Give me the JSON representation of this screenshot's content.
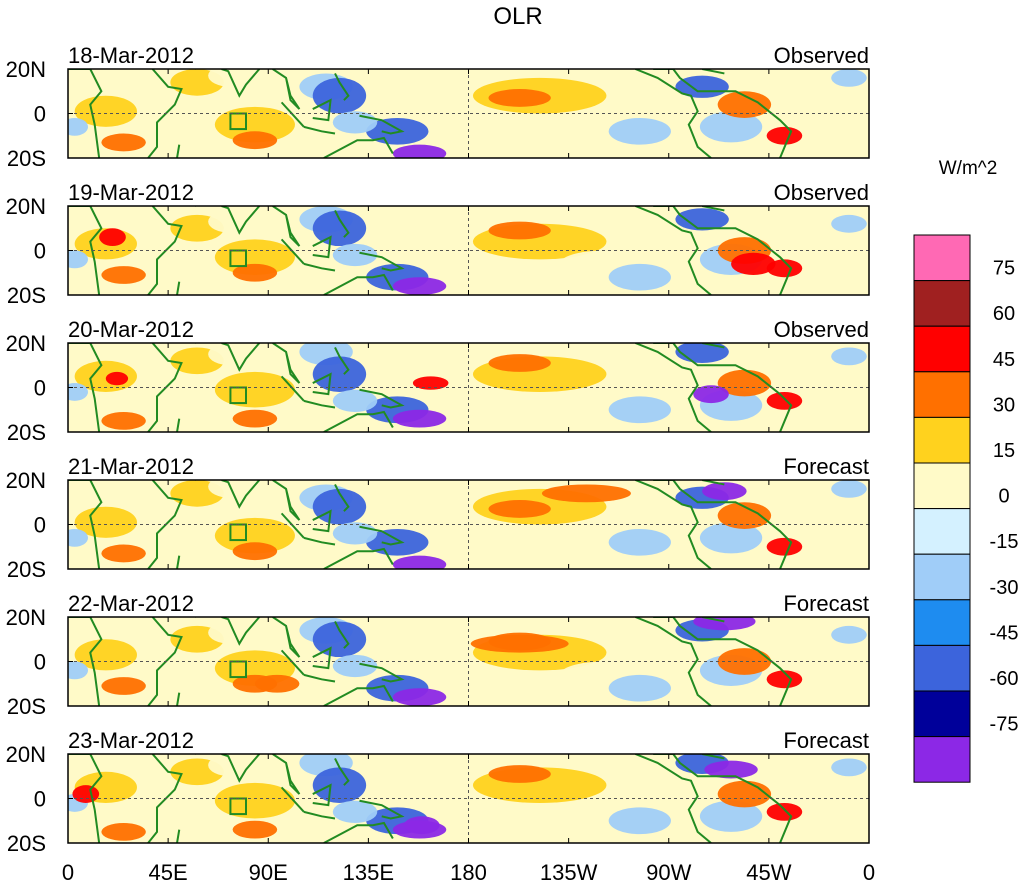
{
  "title": "OLR",
  "units_label": "W/m^2",
  "lat_labels": [
    "20N",
    "0",
    "20S"
  ],
  "lon_labels": [
    "0",
    "45E",
    "90E",
    "135E",
    "180",
    "135W",
    "90W",
    "45W",
    "0"
  ],
  "panels": [
    {
      "date": "18-Mar-2012",
      "type": "Observed"
    },
    {
      "date": "19-Mar-2012",
      "type": "Observed"
    },
    {
      "date": "20-Mar-2012",
      "type": "Observed"
    },
    {
      "date": "21-Mar-2012",
      "type": "Forecast"
    },
    {
      "date": "22-Mar-2012",
      "type": "Forecast"
    },
    {
      "date": "23-Mar-2012",
      "type": "Forecast"
    }
  ],
  "colorbar": {
    "labels": [
      "75",
      "60",
      "45",
      "30",
      "15",
      "0",
      "-15",
      "-30",
      "-45",
      "-60",
      "-75"
    ],
    "colors": [
      "#ff69b4",
      "#a02020",
      "#ff0000",
      "#ff7000",
      "#ffd21e",
      "#fffac8",
      "#d4f1ff",
      "#a0cdf8",
      "#1e8cf0",
      "#3c64dc",
      "#00009a",
      "#8c28e6"
    ]
  },
  "colors": {
    "coast": "#228b22",
    "pos_small": "#fffac8",
    "pos_mid": "#ffd21e",
    "pos_large": "#ff7000",
    "pos_extreme": "#ff0000",
    "neg_small": "#d4f1ff",
    "neg_mid": "#a0cdf8",
    "neg_large": "#3c64dc",
    "neg_extreme": "#8c28e6"
  }
}
